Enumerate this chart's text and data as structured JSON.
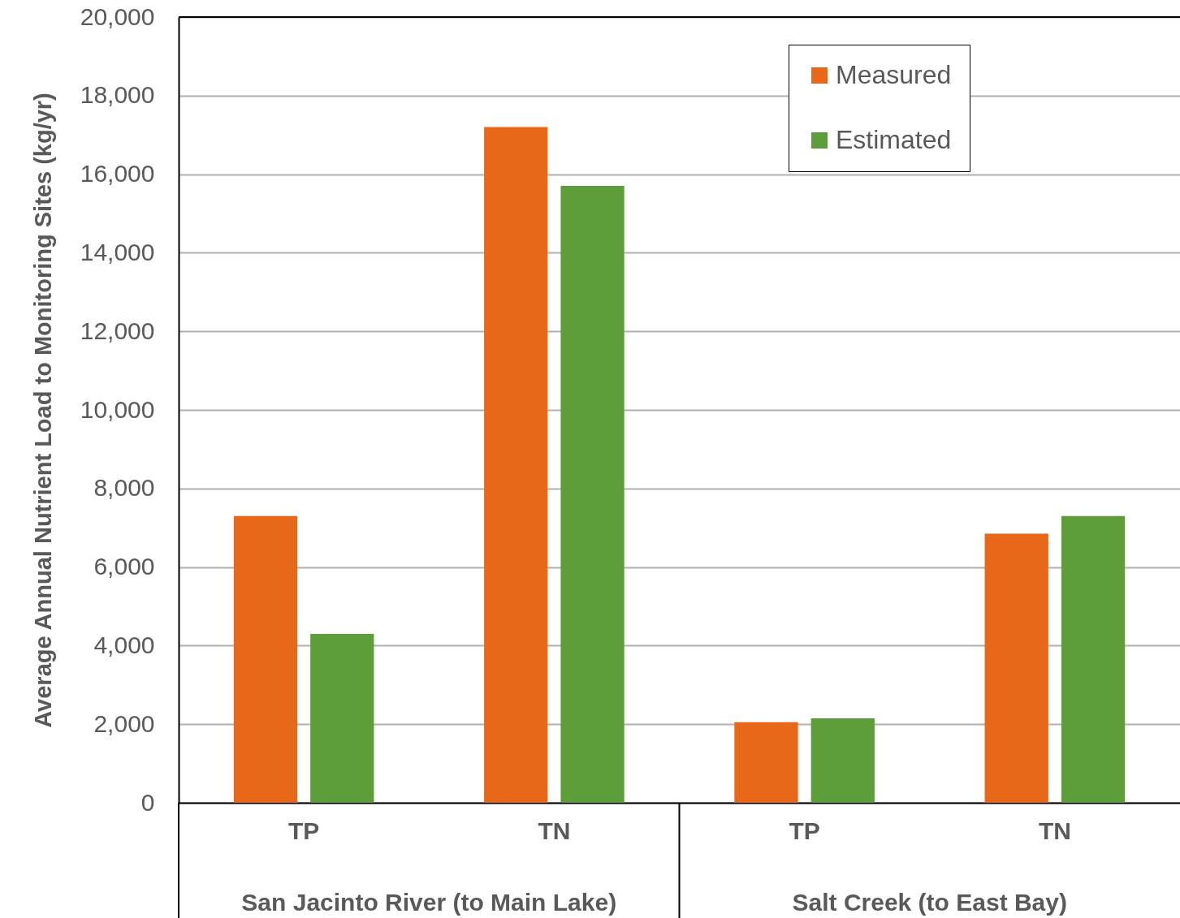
{
  "chart_data": {
    "type": "bar",
    "ylabel": "Average Annual Nutrient Load to Monitoring Sites (kg/yr)",
    "categories": [
      "TP",
      "TN",
      "TP",
      "TN"
    ],
    "annotations": [
      "San Jacinto River (to Main Lake)",
      "Salt Creek (to East Bay)"
    ],
    "series": [
      {
        "name": "Measured",
        "color": "#e8681a",
        "values": [
          7300,
          17200,
          2050,
          6850
        ]
      },
      {
        "name": "Estimated",
        "color": "#5e9e3a",
        "values": [
          4300,
          15700,
          2150,
          7300
        ]
      }
    ],
    "ylim": [
      0,
      20000
    ],
    "yticks": [
      0,
      {
        "value": 2000,
        "label": "2,000"
      },
      {
        "value": 4000,
        "label": "4,000"
      },
      {
        "value": 6000,
        "label": "6,000"
      },
      {
        "value": 8000,
        "label": "8,000"
      },
      {
        "value": 10000,
        "label": "10,000"
      },
      {
        "value": 12000,
        "label": "12,000"
      },
      {
        "value": 14000,
        "label": "14,000"
      },
      {
        "value": 16000,
        "label": "16,000"
      },
      {
        "value": 18000,
        "label": "18,000"
      },
      {
        "value": 20000,
        "label": "20,000"
      }
    ],
    "grid": "y",
    "legend": "top right"
  }
}
